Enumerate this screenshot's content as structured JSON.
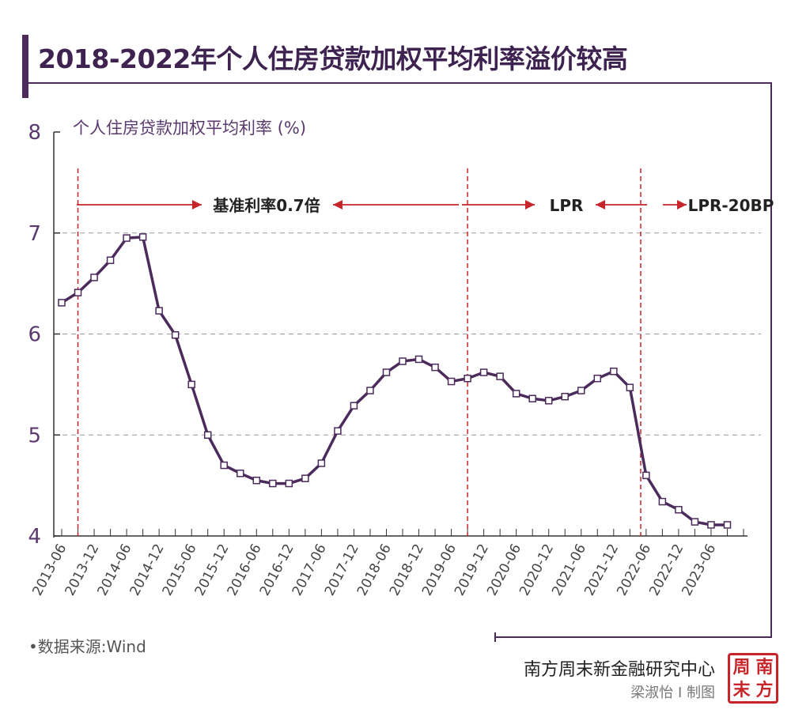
{
  "title": "2018-2022年个人住房贷款加权平均利率溢价较高",
  "source": "•数据来源:Wind",
  "publisher": "南方周末新金融研究中心",
  "author": "梁淑怡 I 制图",
  "seal_chars": [
    "周",
    "南",
    "末",
    "方"
  ],
  "colors": {
    "brand": "#4b2b5c",
    "line": "#4b2b5c",
    "accent_red": "#c8252a",
    "grid": "#9a9a9a",
    "axis_text": "#5a3a6e"
  },
  "chart_data": {
    "type": "line",
    "title": "",
    "ylabel": "个人住房贷款加权平均利率 (%)",
    "ylim": [
      4,
      8
    ],
    "yticks": [
      4,
      5,
      6,
      7,
      8
    ],
    "grid": "dashed horizontal at 5, 6, 7",
    "x_start": "2013-06",
    "x_end": "2023-12",
    "xtick_labels": [
      "2013-06",
      "2013-12",
      "2014-06",
      "2014-12",
      "2015-06",
      "2015-12",
      "2016-06",
      "2016-12",
      "2017-06",
      "2017-12",
      "2018-06",
      "2018-12",
      "2019-06",
      "2019-12",
      "2020-06",
      "2020-12",
      "2021-06",
      "2021-12",
      "2022-06",
      "2022-12",
      "2023-06"
    ],
    "series": [
      {
        "x": [
          "2013-06",
          "2013-09",
          "2013-12",
          "2014-03",
          "2014-06",
          "2014-09",
          "2014-12",
          "2015-03",
          "2015-06",
          "2015-09",
          "2015-12",
          "2016-03",
          "2016-06",
          "2016-09",
          "2016-12",
          "2017-03",
          "2017-06",
          "2017-09",
          "2017-12",
          "2018-03",
          "2018-06",
          "2018-09",
          "2018-12",
          "2019-03",
          "2019-06",
          "2019-09",
          "2019-12",
          "2020-03",
          "2020-06",
          "2020-09",
          "2020-12",
          "2021-03",
          "2021-06",
          "2021-09",
          "2021-12",
          "2022-03",
          "2022-06",
          "2022-09",
          "2022-12",
          "2023-03",
          "2023-06",
          "2023-09"
        ],
        "values": [
          6.31,
          6.41,
          6.56,
          6.73,
          6.95,
          6.96,
          6.23,
          5.99,
          5.5,
          5.0,
          4.7,
          4.62,
          4.55,
          4.52,
          4.52,
          4.57,
          4.72,
          5.04,
          5.29,
          5.44,
          5.62,
          5.73,
          5.75,
          5.67,
          5.53,
          5.56,
          5.62,
          5.58,
          5.41,
          5.36,
          5.34,
          5.38,
          5.44,
          5.56,
          5.63,
          5.47,
          4.6,
          4.34,
          4.26,
          4.14,
          4.11,
          4.11
        ]
      }
    ],
    "regimes": [
      {
        "label": "基准利率0.7倍",
        "from": "2013-09",
        "to": "2019-09"
      },
      {
        "label": "LPR",
        "from": "2019-09",
        "to": "2022-05"
      },
      {
        "label": "LPR-20BP",
        "from": "2022-05",
        "to": ""
      }
    ],
    "dividers": [
      "2013-09",
      "2019-09",
      "2022-05"
    ]
  }
}
